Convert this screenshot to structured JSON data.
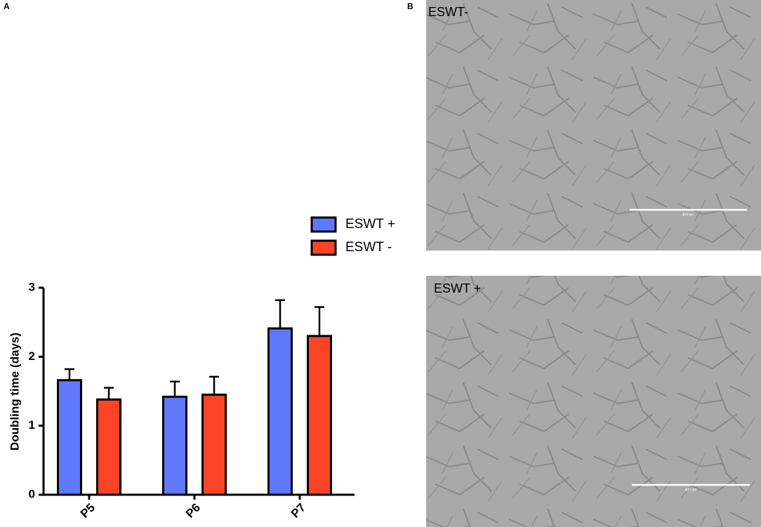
{
  "chart_data": {
    "type": "bar",
    "ylabel": "Doubling time (days)",
    "categories": [
      "P5",
      "P6",
      "P7"
    ],
    "series": [
      {
        "name": "ESWT +",
        "color": "#6078fc",
        "values": [
          1.66,
          1.42,
          2.41
        ],
        "errors": [
          0.16,
          0.22,
          0.41
        ]
      },
      {
        "name": "ESWT -",
        "color": "#fc4426",
        "values": [
          1.38,
          1.45,
          2.3
        ],
        "errors": [
          0.17,
          0.26,
          0.42
        ]
      }
    ],
    "ylim": [
      0,
      3
    ],
    "yticks": [
      0,
      1,
      2,
      3
    ],
    "grid": false
  },
  "panels": {
    "a_label": "A",
    "b_label": "B"
  },
  "images": [
    {
      "label": "ESWT-",
      "scale_label": "400 um"
    },
    {
      "label": "ESWT +",
      "scale_label": "400 um"
    }
  ]
}
